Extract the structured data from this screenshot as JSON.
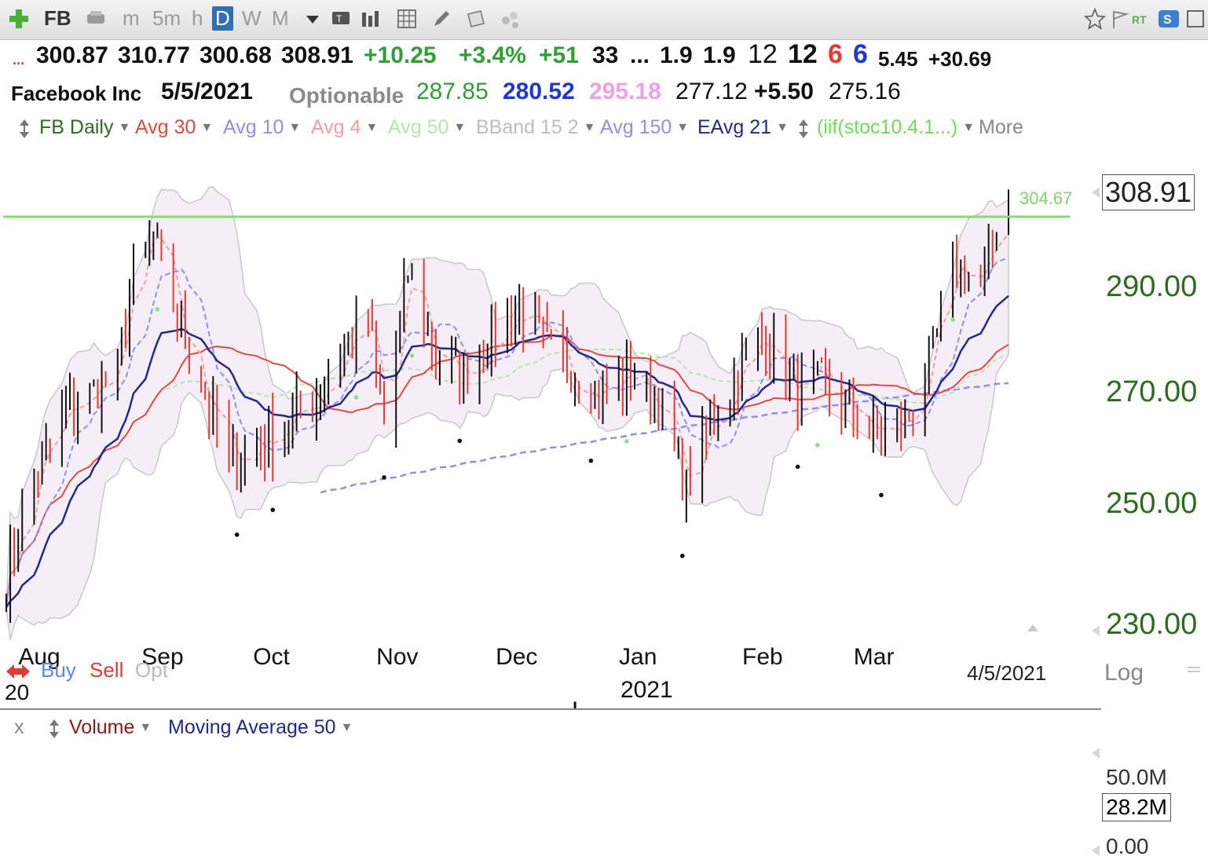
{
  "toolbar": {
    "symbol": "FB",
    "timeframes": [
      "m",
      "5m",
      "h",
      "D",
      "W",
      "M"
    ],
    "active_timeframe": "D",
    "icons": [
      "plus-icon",
      "phone-icon",
      "dropdown-icon",
      "tv-icon",
      "bars-icon",
      "grid-icon",
      "pencil-icon",
      "note-icon",
      "dots-icon",
      "star-icon",
      "flag-icon",
      "rt-icon",
      "s-icon"
    ]
  },
  "quote": {
    "ellipsis": "...",
    "open": "300.87",
    "high": "310.77",
    "low": "300.68",
    "close": "308.91",
    "change": "+10.25",
    "change_pct": "+3.4%",
    "f1": "+51",
    "f2": "33",
    "f3": "...",
    "f4": "1.9",
    "f5": "1.9",
    "f6": "12",
    "f7": "12",
    "f8": "6",
    "f9": "6",
    "f10": "5.45",
    "f11": "+30.69",
    "name": "Facebook Inc",
    "date": "5/5/2021",
    "optionable": "Optionable",
    "v1": "287.85",
    "v2": "280.52",
    "v3": "295.18",
    "v4": "277.12",
    "v5": "+5.50",
    "v6": "275.16"
  },
  "indicators": [
    {
      "label": "FB Daily",
      "color": "#2d6b1e"
    },
    {
      "label": "Avg 30",
      "color": "#e8473e"
    },
    {
      "label": "Avg 10",
      "color": "#8f8ff0"
    },
    {
      "label": "Avg 4",
      "color": "#f0a0a0"
    },
    {
      "label": "Avg 50",
      "color": "#b5e8a8"
    },
    {
      "label": "BBand 15 2",
      "color": "#bdbdbd"
    },
    {
      "label": "Avg 150",
      "color": "#8f8ff0"
    },
    {
      "label": "EAvg 21",
      "color": "#1f2a8c"
    },
    {
      "label": "(iif(stoc10.4.1...)",
      "color": "#6ede55"
    },
    {
      "label": "More",
      "color": "#888888"
    }
  ],
  "price_axis": {
    "labels": [
      "290.00",
      "270.00",
      "250.00",
      "230.00"
    ],
    "scale": "Log",
    "last_price": "308.91",
    "level_label": "304.67"
  },
  "time_axis": {
    "labels": [
      "Aug",
      "Sep",
      "Oct",
      "Nov",
      "Dec",
      "Jan",
      "Feb",
      "Mar"
    ],
    "year_labels": [
      "20",
      "2021"
    ],
    "cursor_date": "4/5/2021"
  },
  "signals": {
    "buy": "Buy",
    "sell": "Sell",
    "opt": "Opt"
  },
  "volume_panel": {
    "close_label": "x",
    "title": "Volume",
    "ma_label": "Moving Average 50",
    "axis_labels": [
      "50.0M",
      "0.00"
    ],
    "current": "28.2M"
  },
  "colors": {
    "up": "#111111",
    "down": "#e23a31",
    "eavg21": "#1f2a8c",
    "avg30": "#e8473e",
    "avg10": "#8f8ff0",
    "avg4": "#f0a0a0",
    "avg50": "#b5e8a8",
    "avg150": "#8f8ff0",
    "band_fill": "#f6eef7",
    "band_line": "#c8c8c8",
    "level": "#7fe06a",
    "axis_text": "#2d6b1e"
  },
  "chart_data": {
    "type": "ohlc",
    "title": "FB Daily",
    "ylim": [
      226,
      316
    ],
    "log_scale": true,
    "horizontal_level": 304.67,
    "x_months": [
      "Aug",
      "Sep",
      "Oct",
      "Nov",
      "Dec",
      "Jan",
      "Feb",
      "Mar"
    ],
    "anchor_closes": [
      [
        "2020-07-27",
        234
      ],
      [
        "2020-08-03",
        252
      ],
      [
        "2020-08-10",
        263
      ],
      [
        "2020-08-17",
        268
      ],
      [
        "2020-08-24",
        272
      ],
      [
        "2020-08-28",
        293
      ],
      [
        "2020-09-02",
        300
      ],
      [
        "2020-09-08",
        283
      ],
      [
        "2020-09-14",
        270
      ],
      [
        "2020-09-21",
        255
      ],
      [
        "2020-09-28",
        258
      ],
      [
        "2020-10-05",
        262
      ],
      [
        "2020-10-12",
        266
      ],
      [
        "2020-10-19",
        275
      ],
      [
        "2020-10-26",
        283
      ],
      [
        "2020-10-30",
        262
      ],
      [
        "2020-11-05",
        292
      ],
      [
        "2020-11-12",
        275
      ],
      [
        "2020-11-19",
        272
      ],
      [
        "2020-11-26",
        278
      ],
      [
        "2020-12-03",
        285
      ],
      [
        "2020-12-10",
        277
      ],
      [
        "2020-12-17",
        272
      ],
      [
        "2020-12-24",
        268
      ],
      [
        "2020-12-31",
        272
      ],
      [
        "2021-01-08",
        265
      ],
      [
        "2021-01-14",
        250
      ],
      [
        "2021-01-22",
        265
      ],
      [
        "2021-01-29",
        275
      ],
      [
        "2021-02-03",
        280
      ],
      [
        "2021-02-10",
        268
      ],
      [
        "2021-02-17",
        270
      ],
      [
        "2021-02-24",
        265
      ],
      [
        "2021-03-03",
        260
      ],
      [
        "2021-03-10",
        262
      ],
      [
        "2021-03-17",
        275
      ],
      [
        "2021-03-22",
        295
      ],
      [
        "2021-03-29",
        290
      ],
      [
        "2021-04-01",
        298
      ],
      [
        "2021-04-05",
        308.91
      ]
    ],
    "last_bar": {
      "open": 300.87,
      "high": 310.77,
      "low": 300.68,
      "close": 308.91
    },
    "series": [
      {
        "name": "Avg 30",
        "end_value": 275.16
      },
      {
        "name": "Avg 10",
        "end_value": 287.85
      },
      {
        "name": "Avg 4",
        "end_value": 295.18
      },
      {
        "name": "EAvg 21",
        "end_value": 280.52
      }
    ],
    "volume": {
      "ylim": [
        0,
        60
      ],
      "unit": "M",
      "moving_average_50": 28.2
    }
  }
}
